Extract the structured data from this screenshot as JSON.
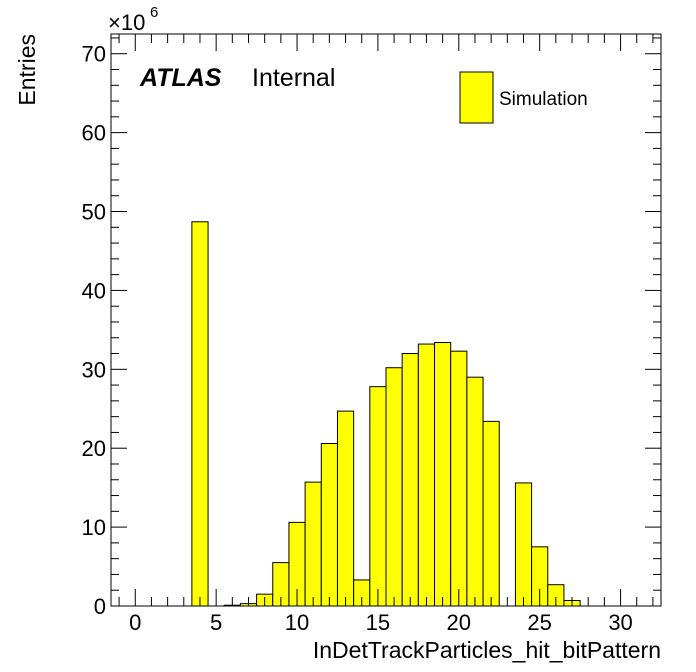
{
  "chart_data": {
    "type": "histogram",
    "xlabel": "InDetTrackParticles_hit_bitPattern",
    "ylabel": "Entries",
    "xlim": [
      -1.5,
      32.5
    ],
    "ylim": [
      0,
      72.5
    ],
    "y_multiplier": "×10",
    "y_multiplier_exponent": "6",
    "x_ticks": [
      0,
      5,
      10,
      15,
      20,
      25,
      30
    ],
    "y_ticks": [
      0,
      10,
      20,
      30,
      40,
      50,
      60,
      70
    ],
    "bin_width": 1,
    "bins": [
      {
        "x": 4,
        "y": 48.7
      },
      {
        "x": 6,
        "y": 0.1
      },
      {
        "x": 7,
        "y": 0.3
      },
      {
        "x": 8,
        "y": 1.5
      },
      {
        "x": 9,
        "y": 5.5
      },
      {
        "x": 10,
        "y": 10.6
      },
      {
        "x": 11,
        "y": 15.7
      },
      {
        "x": 12,
        "y": 20.6
      },
      {
        "x": 13,
        "y": 24.7
      },
      {
        "x": 14,
        "y": 3.3
      },
      {
        "x": 15,
        "y": 27.8
      },
      {
        "x": 16,
        "y": 30.2
      },
      {
        "x": 17,
        "y": 32.0
      },
      {
        "x": 18,
        "y": 33.2
      },
      {
        "x": 19,
        "y": 33.4
      },
      {
        "x": 20,
        "y": 32.3
      },
      {
        "x": 21,
        "y": 29.0
      },
      {
        "x": 22,
        "y": 23.4
      },
      {
        "x": 24,
        "y": 15.6
      },
      {
        "x": 25,
        "y": 7.5
      },
      {
        "x": 26,
        "y": 2.7
      },
      {
        "x": 27,
        "y": 0.7
      }
    ],
    "fill_color": "#ffff00",
    "line_color": "#000000",
    "legend": [
      {
        "name": "Simulation",
        "color": "#ffff00"
      }
    ],
    "legend_position": "top-right",
    "annotation": {
      "bold": "ATLAS",
      "normal": "Internal"
    }
  }
}
